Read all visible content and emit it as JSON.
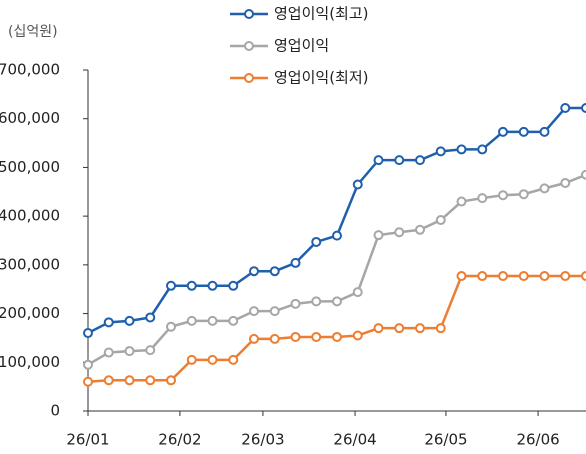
{
  "chart_data": {
    "type": "line",
    "unit_label": "(십억원)",
    "x": [
      0,
      1,
      2,
      3,
      4,
      5,
      6,
      7,
      8,
      9,
      10,
      11,
      12,
      13,
      14,
      15,
      16,
      17,
      18,
      19,
      20,
      21,
      22,
      23,
      24
    ],
    "xlim": [
      0,
      24
    ],
    "xticks": [
      {
        "value": 0,
        "label": "26/01"
      },
      {
        "value": 4.43,
        "label": "26/02"
      },
      {
        "value": 8.43,
        "label": "26/03"
      },
      {
        "value": 12.87,
        "label": "26/04"
      },
      {
        "value": 17.25,
        "label": "26/05"
      },
      {
        "value": 21.69,
        "label": "26/06"
      }
    ],
    "ylim": [
      0,
      700000
    ],
    "yticks": [
      {
        "value": 0,
        "label": "0"
      },
      {
        "value": 100000,
        "label": "100,000"
      },
      {
        "value": 200000,
        "label": "200,000"
      },
      {
        "value": 300000,
        "label": "300,000"
      },
      {
        "value": 400000,
        "label": "400,000"
      },
      {
        "value": 500000,
        "label": "500,000"
      },
      {
        "value": 600000,
        "label": "600,000"
      },
      {
        "value": 700000,
        "label": "700,000"
      }
    ],
    "grid": false,
    "series": [
      {
        "name": "영업이익(최고)",
        "color": "#1f5fad",
        "values": [
          160000,
          182000,
          185000,
          192000,
          257000,
          257000,
          257000,
          257000,
          287000,
          287000,
          304000,
          347000,
          360000,
          465000,
          515000,
          515000,
          515000,
          533000,
          537000,
          537000,
          573000,
          573000,
          573000,
          622000,
          622000
        ]
      },
      {
        "name": "영업이익",
        "color": "#a6a6a6",
        "values": [
          95000,
          120000,
          123000,
          125000,
          173000,
          185000,
          185000,
          185000,
          205000,
          205000,
          220000,
          225000,
          225000,
          244000,
          361000,
          367000,
          372000,
          392000,
          430000,
          437000,
          443000,
          445000,
          457000,
          468000,
          485000
        ]
      },
      {
        "name": "영업이익(최저)",
        "color": "#ed7d31",
        "values": [
          60000,
          63000,
          63000,
          63000,
          63000,
          105000,
          105000,
          105000,
          148000,
          148000,
          152000,
          152000,
          152000,
          155000,
          170000,
          170000,
          170000,
          170000,
          277000,
          277000,
          277000,
          277000,
          277000,
          277000,
          277000
        ]
      }
    ]
  }
}
